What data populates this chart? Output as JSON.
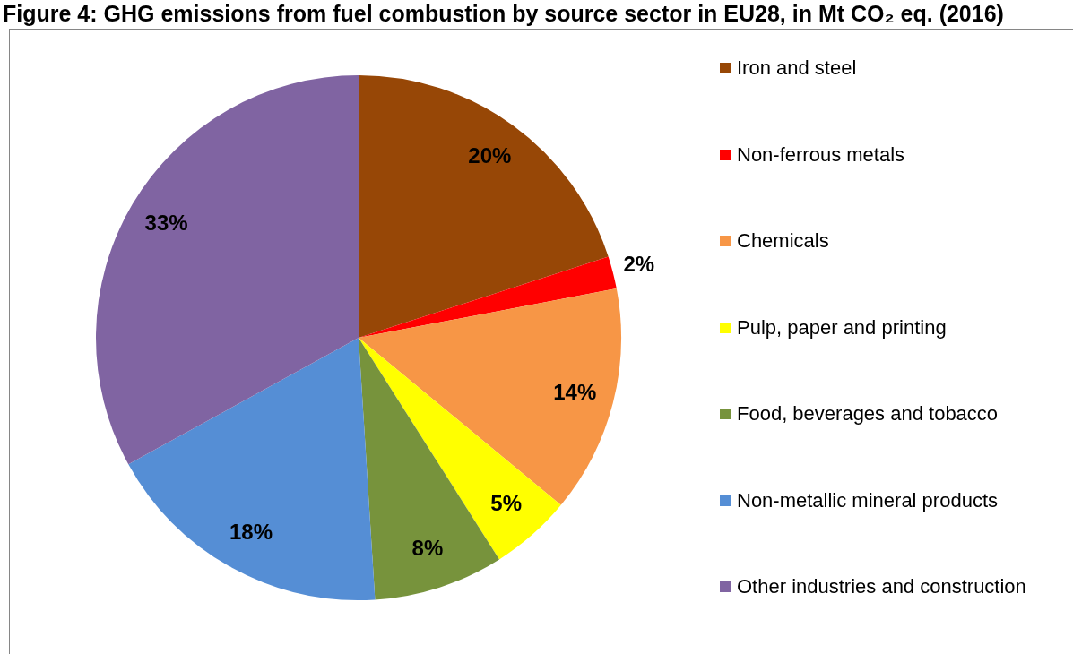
{
  "chart_data": {
    "type": "pie",
    "title": "Figure 4: GHG emissions from fuel combustion by source sector in EU28, in Mt CO₂ eq. (2016)",
    "categories": [
      "Iron and steel",
      "Non-ferrous metals",
      "Chemicals",
      "Pulp, paper and printing",
      "Food, beverages and tobacco",
      "Non-metallic mineral products",
      "Other industries and construction"
    ],
    "values": [
      20,
      2,
      14,
      5,
      8,
      18,
      33
    ],
    "colors": [
      "#974706",
      "#ff0000",
      "#f79646",
      "#ffff00",
      "#77933c",
      "#558ed5",
      "#8064a2"
    ],
    "value_labels": [
      "20%",
      "2%",
      "14%",
      "5%",
      "8%",
      "18%",
      "33%"
    ],
    "legend": "right"
  }
}
